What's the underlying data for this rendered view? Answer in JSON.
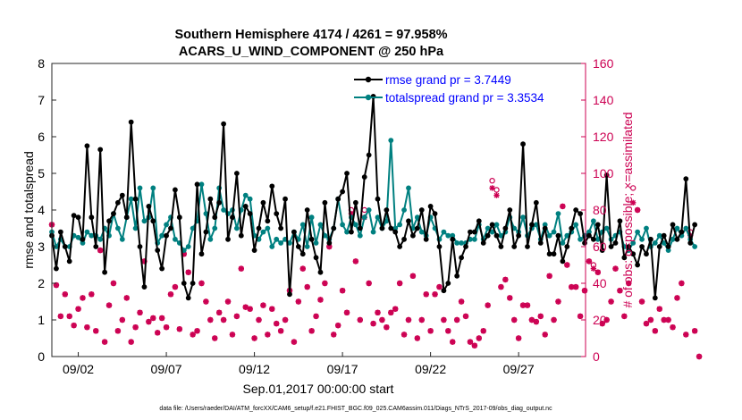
{
  "chart_data": {
    "type": "line",
    "title": [
      "Southern Hemisphere 4174 / 4261 = 97.958%",
      "ACARS_U_WIND_COMPONENT @ 250 hPa"
    ],
    "xlabel": "Sep.01,2017 00:00:00 start",
    "ylabel_left": "rmse and totalspread",
    "ylabel_right": "# of obs: o=possible; ×=assimilated",
    "footer": "data file: /Users/raeder/DAI/ATM_forcXX/CAM6_setup/f.e21.FHIST_BGC.f09_025.CAM6assim.011/Diags_NTrS_2017-09/obs_diag_output.nc",
    "xlim": [
      0.5,
      30.8
    ],
    "x_ticks": [
      2,
      7,
      12,
      17,
      22,
      27
    ],
    "x_tick_labels": [
      "09/02",
      "09/07",
      "09/12",
      "09/17",
      "09/22",
      "09/27"
    ],
    "ylim_left": [
      0,
      8
    ],
    "y_ticks_left": [
      "0",
      "1",
      "2",
      "3",
      "4",
      "5",
      "6",
      "7",
      "8"
    ],
    "ylim_right": [
      0,
      160
    ],
    "y_ticks_right": [
      "0",
      "20",
      "40",
      "60",
      "80",
      "100",
      "120",
      "140",
      "160"
    ],
    "legend": [
      "rmse grand pr = 3.7449",
      "totalspread grand pr = 3.3534"
    ],
    "legend_position": "top-right",
    "colors": {
      "rmse": "#000000",
      "spread": "#008080",
      "obs": "#cc0052",
      "right_axis": "#cc0052",
      "legend_text": "#0000ff"
    },
    "x_start": 0.5,
    "x_step": 0.25,
    "series": [
      {
        "name": "rmse",
        "values": [
          3.3,
          2.4,
          3.4,
          3.0,
          2.6,
          3.85,
          3.8,
          3.2,
          5.75,
          3.8,
          3.0,
          5.65,
          2.3,
          3.7,
          3.9,
          4.2,
          4.4,
          3.8,
          6.4,
          4.3,
          3.0,
          1.9,
          4.1,
          3.7,
          2.9,
          2.4,
          3.3,
          3.5,
          4.55,
          3.8,
          2.0,
          1.6,
          2.0,
          4.7,
          2.8,
          3.4,
          4.3,
          3.8,
          4.2,
          6.35,
          3.2,
          3.8,
          5.0,
          3.3,
          4.1,
          3.9,
          2.9,
          3.5,
          4.2,
          3.7,
          4.65,
          3.9,
          3.5,
          4.3,
          1.7,
          3.4,
          3.0,
          2.8,
          4.0,
          3.2,
          2.7,
          2.3,
          4.2,
          3.1,
          3.5,
          4.3,
          4.5,
          5.0,
          3.4,
          4.2,
          3.5,
          4.9,
          5.5,
          7.1,
          4.3,
          3.5,
          4.0,
          3.5,
          3.4,
          3.0,
          3.2,
          3.7,
          3.3,
          3.5,
          4.0,
          3.2,
          4.1,
          3.9,
          3.0,
          1.8,
          2.0,
          3.2,
          2.2,
          2.7,
          3.0,
          3.4,
          3.4,
          3.7,
          3.1,
          3.3,
          3.6,
          3.3,
          3.0,
          3.5,
          4.0,
          3.0,
          3.3,
          5.8,
          3.0,
          3.6,
          4.2,
          3.1,
          3.5,
          2.8,
          2.8,
          3.3,
          2.6,
          3.0,
          3.5,
          4.0,
          3.9,
          3.1,
          3.3,
          3.2,
          3.6,
          2.9,
          4.95,
          3.0,
          3.1,
          3.7,
          2.7,
          3.0,
          2.8,
          2.5,
          3.0,
          2.8,
          3.2,
          1.6,
          3.0,
          3.3,
          3.0,
          3.6,
          3.2,
          3.4,
          4.85,
          3.1,
          3.6
        ]
      },
      {
        "name": "totalspread",
        "values": [
          3.4,
          3.0,
          3.2,
          3.0,
          3.0,
          3.3,
          3.25,
          3.1,
          3.4,
          3.3,
          3.3,
          3.2,
          3.5,
          3.3,
          3.9,
          3.5,
          3.2,
          3.8,
          4.3,
          3.5,
          4.6,
          3.7,
          3.8,
          4.6,
          3.1,
          3.3,
          3.6,
          3.8,
          3.2,
          3.1,
          2.9,
          3.0,
          3.5,
          3.7,
          4.7,
          3.9,
          3.2,
          3.5,
          4.6,
          4.0,
          3.9,
          4.0,
          3.5,
          4.0,
          4.4,
          4.3,
          3.3,
          3.2,
          3.4,
          3.5,
          3.0,
          3.2,
          3.1,
          3.2,
          3.1,
          3.4,
          3.2,
          3.6,
          3.0,
          3.8,
          3.1,
          3.6,
          3.3,
          3.2,
          3.5,
          4.3,
          3.6,
          3.4,
          3.8,
          3.6,
          3.3,
          3.8,
          4.0,
          3.4,
          3.8,
          3.5,
          3.7,
          5.9,
          3.5,
          3.6,
          4.0,
          4.6,
          3.5,
          3.8,
          3.4,
          3.3,
          3.8,
          3.5,
          3.2,
          3.4,
          3.3,
          3.3,
          3.1,
          3.1,
          3.1,
          3.2,
          3.2,
          3.6,
          3.2,
          3.5,
          3.4,
          3.6,
          3.3,
          3.4,
          3.8,
          3.5,
          3.4,
          3.8,
          3.3,
          3.5,
          3.6,
          3.2,
          3.6,
          3.3,
          3.4,
          3.9,
          3.1,
          3.3,
          3.4,
          3.6,
          3.2,
          3.3,
          3.4,
          3.7,
          3.2,
          3.4,
          3.5,
          3.2,
          3.3,
          3.4,
          3.0,
          2.9,
          3.1,
          3.4,
          3.2,
          3.5,
          3.0,
          3.1,
          3.3,
          3.1,
          2.9,
          3.2,
          3.5,
          3.3,
          3.5,
          3.2,
          3.0
        ]
      },
      {
        "name": "obs_possible",
        "values": [
          72,
          39,
          22,
          34,
          22,
          17,
          26,
          32,
          16,
          34,
          14,
          58,
          8,
          28,
          40,
          14,
          20,
          32,
          8,
          16,
          24,
          52,
          19,
          21,
          13,
          21,
          16,
          34,
          38,
          15,
          56,
          46,
          12,
          14,
          40,
          30,
          20,
          10,
          24,
          20,
          30,
          12,
          22,
          48,
          27,
          26,
          10,
          20,
          28,
          12,
          26,
          18,
          14,
          20,
          36,
          8,
          30,
          48,
          38,
          14,
          22,
          31,
          40,
          60,
          12,
          17,
          36,
          24,
          80,
          52,
          20,
          80,
          40,
          18,
          24,
          20,
          16,
          24,
          26,
          40,
          12,
          20,
          44,
          10,
          20,
          34,
          14,
          34,
          38,
          20,
          14,
          8,
          20,
          30,
          22,
          8,
          6,
          10,
          14,
          28,
          96,
          91,
          38,
          42,
          32,
          20,
          10,
          28,
          28,
          20,
          19,
          22,
          12,
          44,
          20,
          30,
          82,
          50,
          38,
          38,
          22,
          36,
          52,
          50,
          46,
          18,
          20,
          30,
          48,
          36,
          22,
          40,
          92,
          80,
          30,
          18,
          20,
          14,
          26,
          20,
          20,
          16,
          32,
          40,
          12,
          68,
          14,
          0
        ],
        "marker": "o"
      },
      {
        "name": "obs_assimilated",
        "values": [
          72,
          39,
          22,
          34,
          22,
          17,
          26,
          32,
          16,
          34,
          14,
          58,
          8,
          28,
          40,
          14,
          20,
          32,
          8,
          16,
          24,
          52,
          19,
          21,
          13,
          21,
          16,
          34,
          38,
          15,
          56,
          46,
          12,
          14,
          40,
          30,
          20,
          10,
          24,
          20,
          30,
          12,
          22,
          48,
          27,
          26,
          10,
          20,
          28,
          12,
          26,
          18,
          14,
          20,
          36,
          8,
          30,
          48,
          38,
          14,
          22,
          31,
          40,
          60,
          12,
          17,
          36,
          24,
          78,
          52,
          20,
          76,
          40,
          18,
          24,
          20,
          16,
          24,
          26,
          40,
          12,
          20,
          44,
          10,
          20,
          34,
          14,
          34,
          38,
          20,
          14,
          8,
          20,
          30,
          22,
          8,
          6,
          10,
          14,
          28,
          92,
          88,
          38,
          42,
          32,
          20,
          10,
          28,
          28,
          20,
          19,
          22,
          12,
          44,
          20,
          30,
          82,
          50,
          38,
          38,
          22,
          36,
          52,
          48,
          46,
          18,
          20,
          30,
          48,
          36,
          22,
          40,
          84,
          80,
          30,
          18,
          20,
          14,
          26,
          20,
          20,
          16,
          32,
          40,
          12,
          66,
          14,
          0
        ],
        "marker": "*"
      }
    ]
  }
}
